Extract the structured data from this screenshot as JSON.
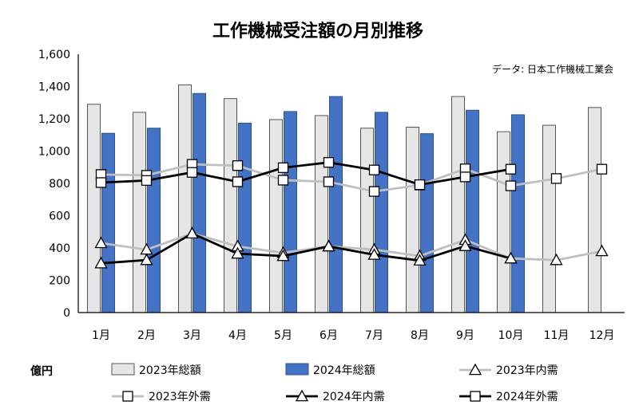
{
  "chart_data": {
    "type": "bar",
    "title": "工作機械受注額の月別推移",
    "source": "データ: 日本工作機械工業会",
    "unit_label": "億円",
    "categories": [
      "1月",
      "2月",
      "3月",
      "4月",
      "5月",
      "6月",
      "7月",
      "8月",
      "9月",
      "10月",
      "11月",
      "12月"
    ],
    "ylim": [
      0,
      1600
    ],
    "yticks": [
      "0",
      "200",
      "400",
      "600",
      "800",
      "1,000",
      "1,200",
      "1,400",
      "1,600"
    ],
    "ytick_values": [
      0,
      200,
      400,
      600,
      800,
      1000,
      1200,
      1400,
      1600
    ],
    "bar_series": [
      {
        "name": "2023年総額",
        "values": [
          1290,
          1240,
          1410,
          1325,
          1195,
          1220,
          1142,
          1148,
          1338,
          1120,
          1160,
          1270
        ],
        "color": "#e6e6e6",
        "stroke": "#555555"
      },
      {
        "name": "2024年総額",
        "values": [
          1110,
          1142,
          1357,
          1173,
          1245,
          1338,
          1240,
          1108,
          1253,
          1225,
          null,
          null
        ],
        "color": "#4472c4",
        "stroke": "#2f528f"
      }
    ],
    "line_series": [
      {
        "name": "2023年内需",
        "values": [
          430,
          390,
          490,
          410,
          370,
          410,
          390,
          350,
          450,
          335,
          325,
          380
        ],
        "color": "#bfbfbf",
        "marker": "triangle"
      },
      {
        "name": "2023年外需",
        "values": [
          855,
          850,
          918,
          910,
          820,
          810,
          750,
          790,
          890,
          785,
          830,
          888
        ],
        "color": "#bfbfbf",
        "marker": "square"
      },
      {
        "name": "2024年内需",
        "values": [
          305,
          325,
          490,
          365,
          350,
          410,
          358,
          322,
          412,
          335,
          null,
          null
        ],
        "color": "#000000",
        "marker": "triangle"
      },
      {
        "name": "2024年外需",
        "values": [
          805,
          818,
          868,
          810,
          897,
          930,
          883,
          792,
          840,
          888,
          null,
          null
        ],
        "color": "#000000",
        "marker": "square"
      }
    ],
    "legend_position": "bottom",
    "grid": false
  }
}
